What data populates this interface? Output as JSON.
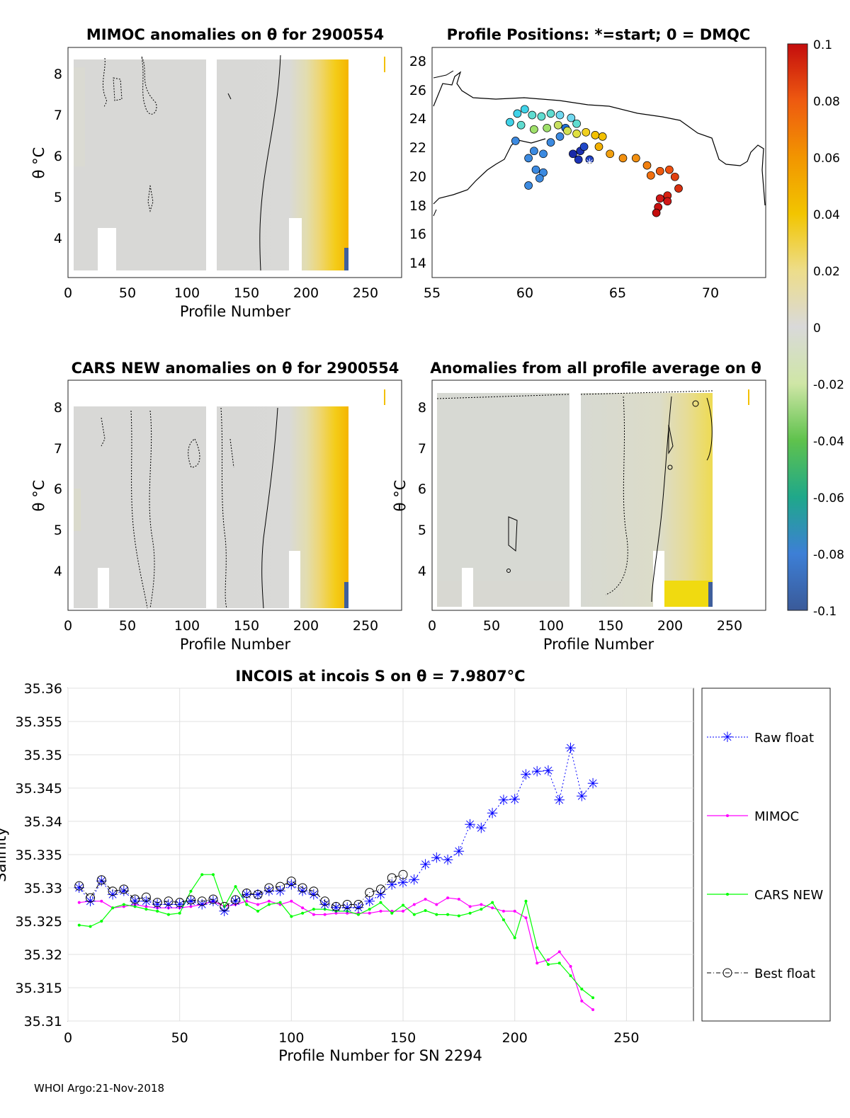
{
  "footer": "WHOI Argo:21-Nov-2018",
  "panels": {
    "mimoc": {
      "title": "MIMOC anomalies on θ  for 2900554",
      "xlabel": "Profile Number",
      "ylabel": "θ °C",
      "xticks": [
        "0",
        "50",
        "100",
        "150",
        "200",
        "250"
      ],
      "yticks": [
        "4",
        "5",
        "6",
        "7",
        "8"
      ]
    },
    "positions": {
      "title": "Profile Positions: *=start; 0 = DMQC",
      "xticks": [
        "55",
        "60",
        "65",
        "70"
      ],
      "yticks": [
        "14",
        "16",
        "18",
        "20",
        "22",
        "24",
        "26",
        "28"
      ]
    },
    "cars": {
      "title": "CARS NEW anomalies on θ for 2900554",
      "xlabel": "Profile Number",
      "ylabel": "θ °C",
      "xticks": [
        "0",
        "50",
        "100",
        "150",
        "200",
        "250"
      ],
      "yticks": [
        "4",
        "5",
        "6",
        "7",
        "8"
      ]
    },
    "avg": {
      "title": "Anomalies from all profile average on θ",
      "xlabel": "Profile Number",
      "ylabel": "θ °C",
      "xticks": [
        "0",
        "50",
        "100",
        "150",
        "200",
        "250"
      ],
      "yticks": [
        "4",
        "5",
        "6",
        "7",
        "8"
      ]
    }
  },
  "colorbar": {
    "ticks": [
      "0.1",
      "0.08",
      "0.06",
      "0.04",
      "0.02",
      "0",
      "-0.02",
      "-0.04",
      "-0.06",
      "-0.08",
      "-0.1"
    ]
  },
  "chart_data": [
    {
      "type": "heatmap",
      "title": "MIMOC anomalies on θ  for 2900554",
      "xlabel": "Profile Number",
      "ylabel": "θ °C",
      "xlim": [
        0,
        280
      ],
      "ylim": [
        3.1,
        8.7
      ],
      "clim": [
        -0.1,
        0.1
      ]
    },
    {
      "type": "scatter",
      "title": "Profile Positions: *=start; 0 = DMQC",
      "xlim": [
        55,
        73
      ],
      "ylim": [
        13,
        29
      ],
      "description_points": "float track colored by profile number"
    },
    {
      "type": "heatmap",
      "title": "CARS NEW anomalies on θ for 2900554",
      "xlabel": "Profile Number",
      "ylabel": "θ °C",
      "xlim": [
        0,
        280
      ],
      "ylim": [
        3.1,
        8.7
      ],
      "clim": [
        -0.1,
        0.1
      ]
    },
    {
      "type": "heatmap",
      "title": "Anomalies from all profile average on θ",
      "xlabel": "Profile Number",
      "ylabel": "θ °C",
      "xlim": [
        0,
        280
      ],
      "ylim": [
        3.1,
        8.7
      ],
      "clim": [
        -0.1,
        0.1
      ]
    },
    {
      "type": "line",
      "title": "INCOIS at incois S on θ = 7.9807°C",
      "xlabel": "Profile Number for SN 2294",
      "ylabel": "Salinity",
      "xlim": [
        0,
        280
      ],
      "ylim": [
        35.31,
        35.36
      ],
      "xticks": [
        "0",
        "50",
        "100",
        "150",
        "200",
        "250"
      ],
      "yticks": [
        "35.31",
        "35.315",
        "35.32",
        "35.325",
        "35.33",
        "35.335",
        "35.34",
        "35.345",
        "35.35",
        "35.355",
        "35.36"
      ],
      "series": [
        {
          "name": "Raw float",
          "color": "#0000ff",
          "x": [
            5,
            10,
            15,
            20,
            25,
            30,
            35,
            40,
            45,
            50,
            55,
            60,
            65,
            70,
            75,
            80,
            85,
            90,
            95,
            100,
            105,
            110,
            115,
            120,
            125,
            130,
            135,
            140,
            145,
            150,
            155,
            160,
            165,
            170,
            175,
            180,
            185,
            190,
            195,
            200,
            205,
            210,
            215,
            220,
            225,
            230,
            235
          ],
          "y": [
            35.33,
            35.328,
            35.331,
            35.329,
            35.3295,
            35.328,
            35.328,
            35.3275,
            35.3275,
            35.3275,
            35.328,
            35.3275,
            35.328,
            35.3265,
            35.328,
            35.329,
            35.329,
            35.3295,
            35.3295,
            35.3305,
            35.3295,
            35.329,
            35.3275,
            35.327,
            35.327,
            35.327,
            35.328,
            35.329,
            35.3305,
            35.3308,
            35.3312,
            35.3335,
            35.3345,
            35.3342,
            35.3355,
            35.3395,
            35.339,
            35.3412,
            35.3432,
            35.3433,
            35.347,
            35.3475,
            35.3476,
            35.3432,
            35.351,
            35.3438,
            35.3457
          ]
        },
        {
          "name": "MIMOC",
          "color": "#ff00ff",
          "x": [
            5,
            10,
            15,
            20,
            25,
            30,
            35,
            40,
            45,
            50,
            55,
            60,
            65,
            70,
            75,
            80,
            85,
            90,
            95,
            100,
            105,
            110,
            115,
            120,
            125,
            130,
            135,
            140,
            145,
            150,
            155,
            160,
            165,
            170,
            175,
            180,
            185,
            190,
            195,
            200,
            205,
            210,
            215,
            220,
            225,
            230,
            235
          ],
          "y": [
            35.3278,
            35.328,
            35.328,
            35.327,
            35.3272,
            35.3275,
            35.3272,
            35.327,
            35.327,
            35.327,
            35.3272,
            35.3275,
            35.328,
            35.3272,
            35.3275,
            35.328,
            35.3275,
            35.328,
            35.3275,
            35.328,
            35.327,
            35.326,
            35.326,
            35.3262,
            35.3262,
            35.3262,
            35.3262,
            35.3265,
            35.3265,
            35.3265,
            35.3275,
            35.3283,
            35.3275,
            35.3285,
            35.3283,
            35.3272,
            35.3275,
            35.327,
            35.3265,
            35.3265,
            35.3255,
            35.3187,
            35.3192,
            35.3204,
            35.3182,
            35.313,
            35.3117
          ]
        },
        {
          "name": "CARS NEW",
          "color": "#00ff00",
          "x": [
            5,
            10,
            15,
            20,
            25,
            30,
            35,
            40,
            45,
            50,
            55,
            60,
            65,
            70,
            75,
            80,
            85,
            90,
            95,
            100,
            105,
            110,
            115,
            120,
            125,
            130,
            135,
            140,
            145,
            150,
            155,
            160,
            165,
            170,
            175,
            180,
            185,
            190,
            195,
            200,
            205,
            210,
            215,
            220,
            225,
            230,
            235
          ],
          "y": [
            35.3244,
            35.3242,
            35.325,
            35.327,
            35.3275,
            35.3272,
            35.3268,
            35.3265,
            35.326,
            35.3262,
            35.3295,
            35.332,
            35.332,
            35.3272,
            35.3302,
            35.3275,
            35.3265,
            35.3275,
            35.3278,
            35.3257,
            35.3262,
            35.3268,
            35.3268,
            35.3265,
            35.3265,
            35.326,
            35.3268,
            35.3278,
            35.3262,
            35.3274,
            35.326,
            35.3266,
            35.326,
            35.326,
            35.3258,
            35.3262,
            35.3268,
            35.3278,
            35.3252,
            35.3225,
            35.328,
            35.321,
            35.3185,
            35.3187,
            35.3168,
            35.3148,
            35.3135
          ]
        },
        {
          "name": "Best float",
          "color": "#000000",
          "x": [
            5,
            10,
            15,
            20,
            25,
            30,
            35,
            40,
            45,
            50,
            55,
            60,
            65,
            70,
            75,
            80,
            85,
            90,
            95,
            100,
            105,
            110,
            115,
            120,
            125,
            130,
            135,
            140,
            145,
            150
          ],
          "y": [
            35.3303,
            35.3285,
            35.3312,
            35.3295,
            35.3298,
            35.3283,
            35.3286,
            35.3278,
            35.328,
            35.3278,
            35.3282,
            35.328,
            35.3283,
            35.3272,
            35.3282,
            35.3292,
            35.329,
            35.33,
            35.3302,
            35.331,
            35.33,
            35.3295,
            35.328,
            35.3272,
            35.3275,
            35.3275,
            35.3293,
            35.3298,
            35.3315,
            35.332
          ]
        }
      ]
    }
  ],
  "bottom": {
    "title": "INCOIS at incois S on θ = 7.9807°C",
    "xlabel": "Profile Number for SN 2294",
    "ylabel": "Salinity",
    "xticks": [
      "0",
      "50",
      "100",
      "150",
      "200",
      "250"
    ],
    "yticks": [
      "35.31",
      "35.315",
      "35.32",
      "35.325",
      "35.33",
      "35.335",
      "35.34",
      "35.345",
      "35.35",
      "35.355",
      "35.36"
    ],
    "legend": [
      "Raw float",
      "MIMOC",
      "CARS NEW",
      "Best float"
    ]
  },
  "colors": {
    "raw": "#0000ff",
    "mimoc": "#ff00ff",
    "cars": "#00ff00",
    "best": "#000000",
    "neutral": "#d9d9d9",
    "positive": "#f2c300"
  }
}
